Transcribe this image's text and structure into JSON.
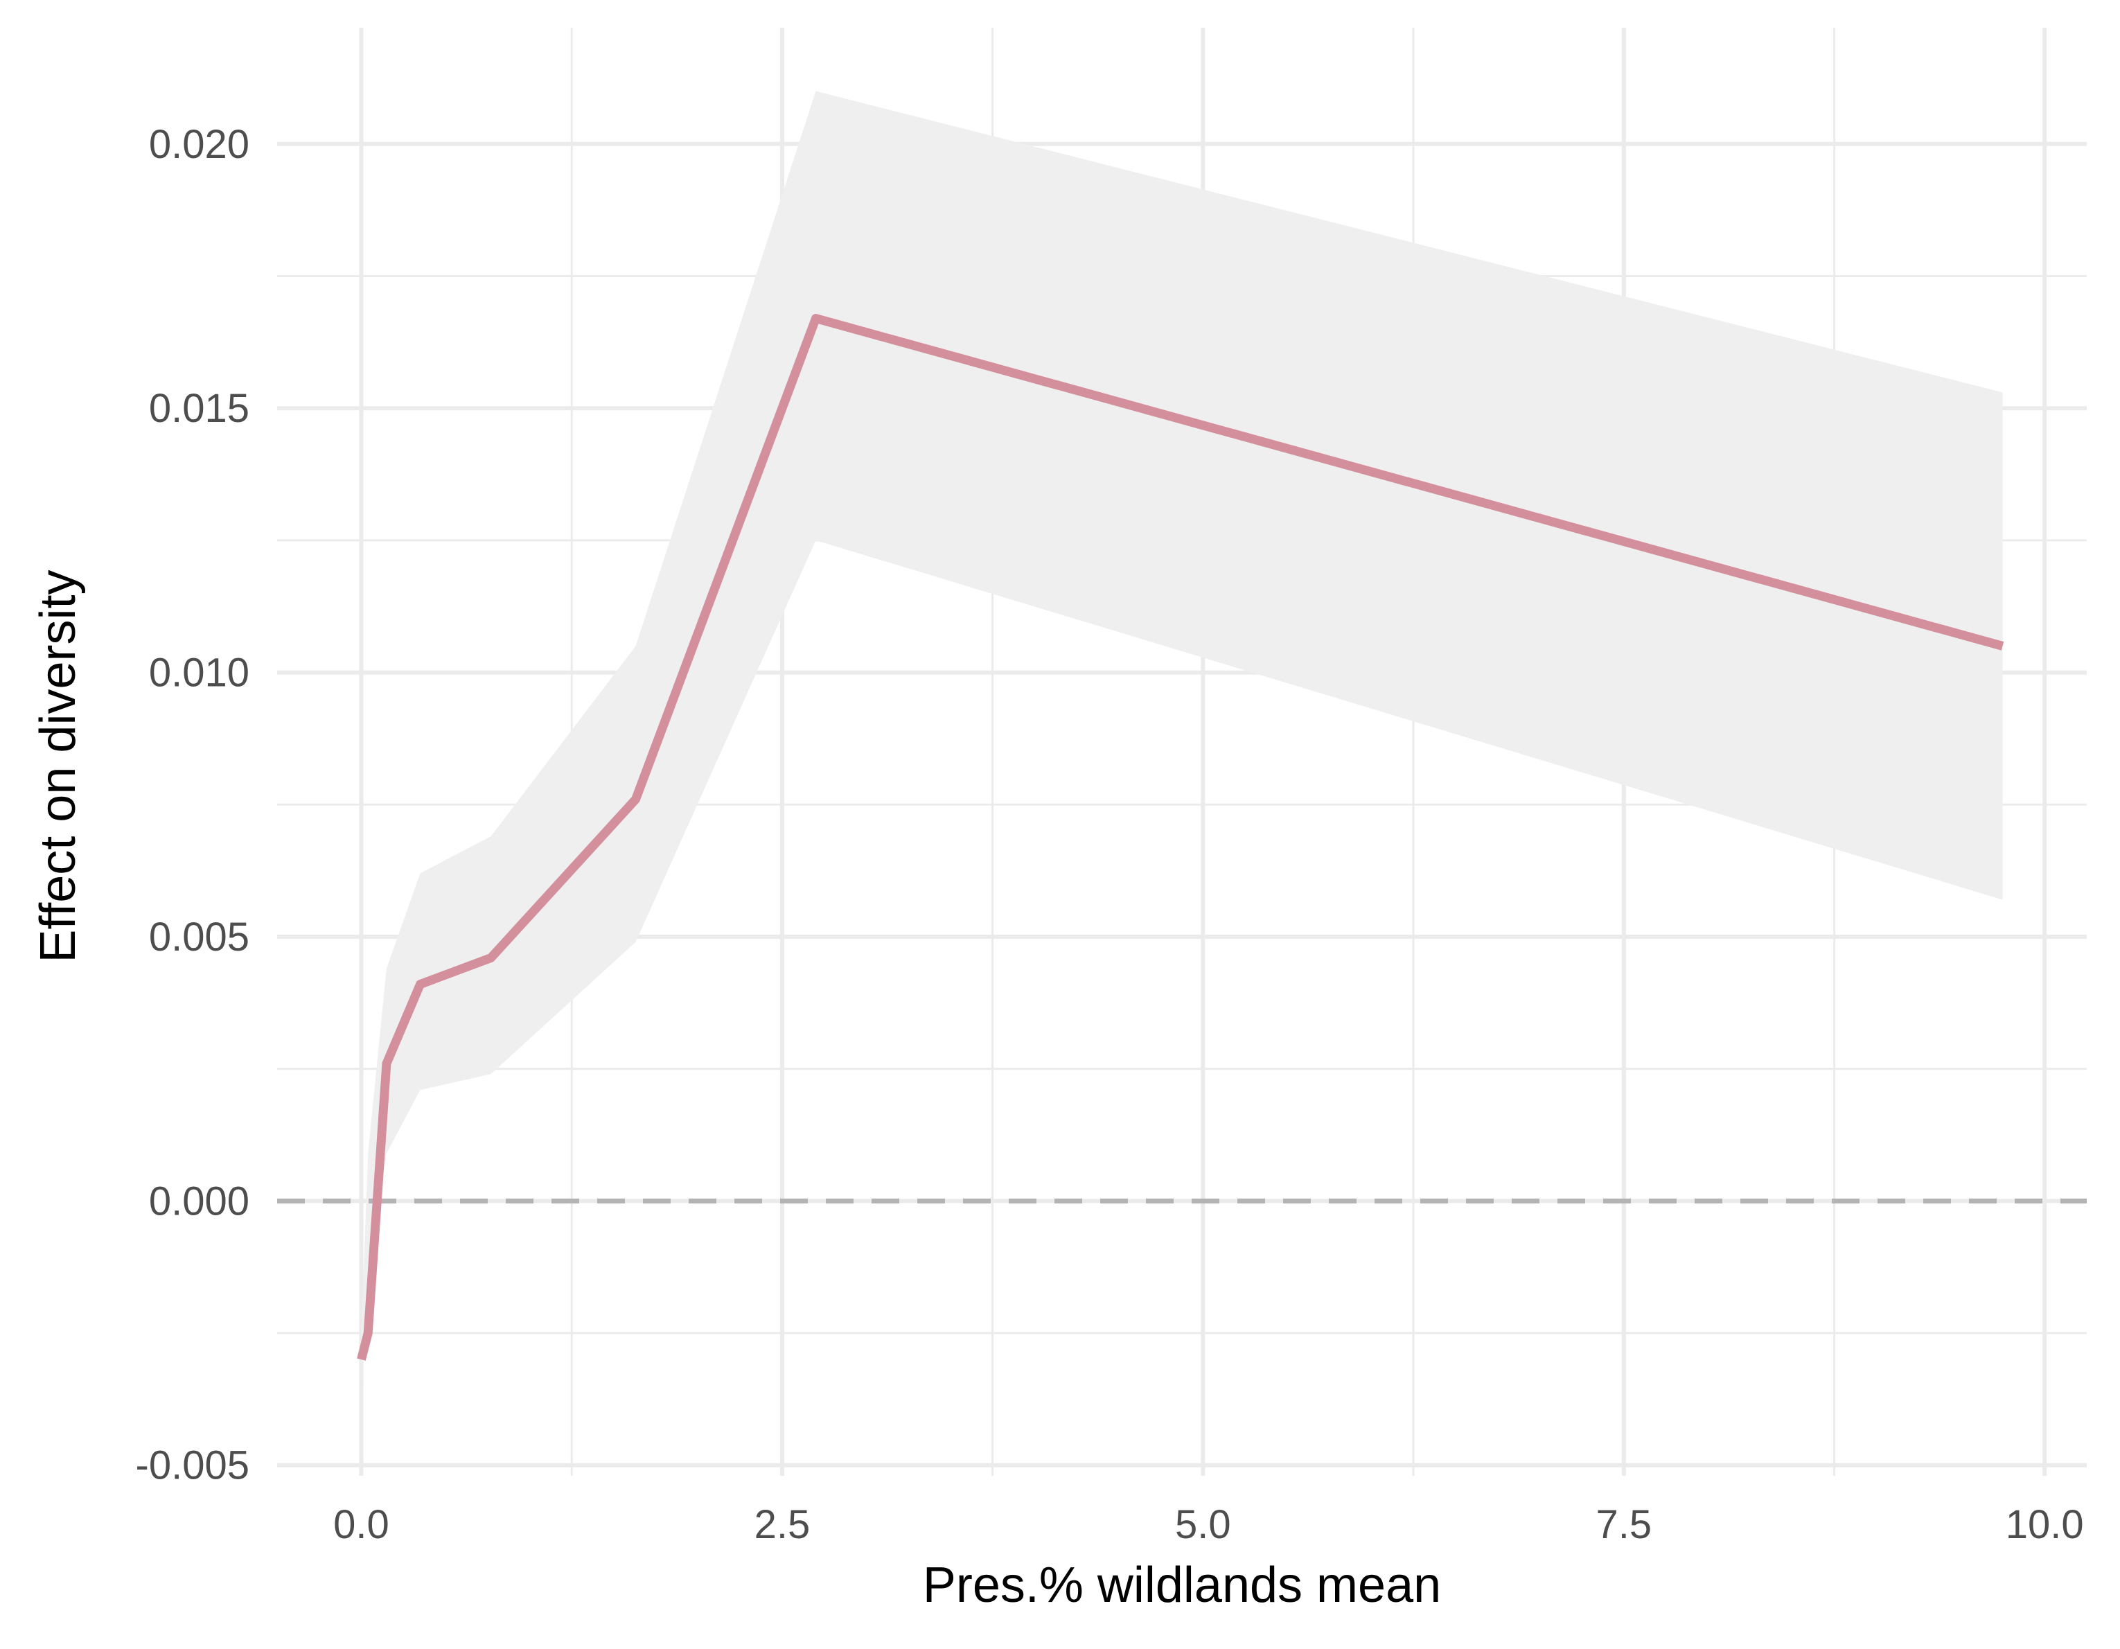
{
  "chart_data": {
    "type": "line",
    "title": "",
    "xlabel": "Pres.% wildlands mean",
    "ylabel": "Effect on diversity",
    "xlim": [
      -0.5,
      10.25
    ],
    "ylim": [
      -0.0052,
      0.0222
    ],
    "x_ticks": [
      0.0,
      2.5,
      5.0,
      7.5,
      10.0
    ],
    "x_tick_labels": [
      "0.0",
      "2.5",
      "5.0",
      "7.5",
      "10.0"
    ],
    "y_ticks": [
      -0.005,
      0.0,
      0.005,
      0.01,
      0.015,
      0.02
    ],
    "y_tick_labels": [
      "-0.005",
      "0.000",
      "0.005",
      "0.010",
      "0.015",
      "0.020"
    ],
    "grid": true,
    "reference_line": {
      "y": 0.0,
      "style": "dashed",
      "color": "#b3b3b3"
    },
    "series": [
      {
        "x": [
          0.0,
          0.04,
          0.15,
          0.35,
          0.77,
          1.63,
          2.7,
          9.75
        ],
        "y": [
          -0.003,
          -0.0025,
          0.0026,
          0.0041,
          0.0046,
          0.0076,
          0.0167,
          0.0105
        ],
        "ci_lower": [
          -0.0035,
          -0.0012,
          0.0009,
          0.0021,
          0.0024,
          0.0049,
          0.0125,
          0.0057
        ],
        "ci_upper": [
          -0.0025,
          0.0009,
          0.0044,
          0.0062,
          0.0069,
          0.0105,
          0.021,
          0.0153
        ],
        "color": "#d48f9d",
        "ribbon_color": "#efefef"
      }
    ]
  }
}
